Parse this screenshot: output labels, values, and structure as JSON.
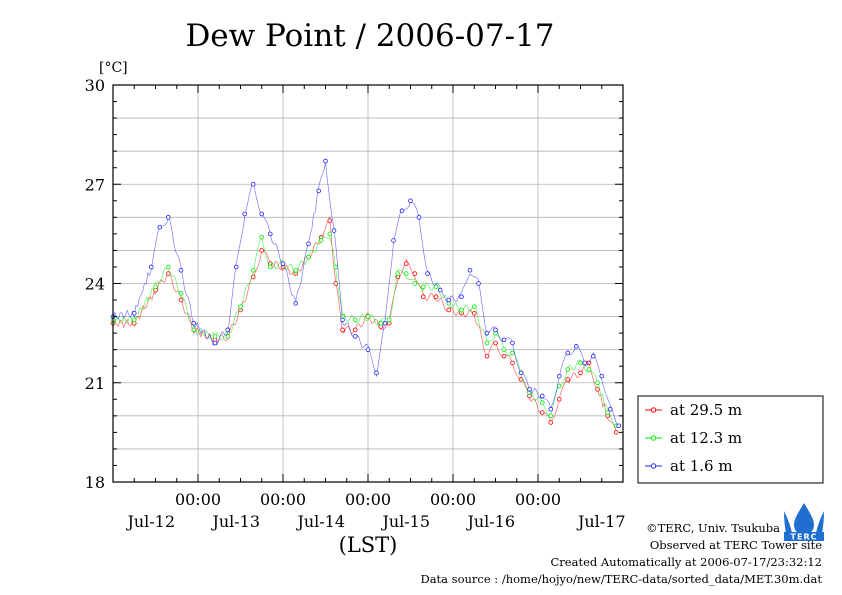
{
  "chart_data": {
    "type": "line",
    "title": "Dew Point / 2006-07-17",
    "unit_label": "[°C]",
    "xlabel": "(LST)",
    "ylim": [
      18,
      30
    ],
    "y_ticks": [
      18,
      21,
      24,
      27,
      30
    ],
    "xlim": [
      0,
      6
    ],
    "x_time_ticks": [
      {
        "at": 1,
        "time": "00:00",
        "date": "Jul-12"
      },
      {
        "at": 2,
        "time": "00:00",
        "date": "Jul-13"
      },
      {
        "at": 3,
        "time": "00:00",
        "date": "Jul-14"
      },
      {
        "at": 4,
        "time": "00:00",
        "date": "Jul-15"
      },
      {
        "at": 5,
        "time": "00:00",
        "date": "Jul-16"
      }
    ],
    "x_extra_date_label": {
      "at": 5.75,
      "date": "Jul-17"
    },
    "grid": true,
    "legend_position": "right",
    "series": [
      {
        "name": "at 29.5 m",
        "color": "#ff0000",
        "points": [
          [
            0,
            22.8
          ],
          [
            0.25,
            22.8
          ],
          [
            0.5,
            23.8
          ],
          [
            0.65,
            24.3
          ],
          [
            0.8,
            23.5
          ],
          [
            0.95,
            22.6
          ],
          [
            1.2,
            22.3
          ],
          [
            1.35,
            22.4
          ],
          [
            1.5,
            23.2
          ],
          [
            1.65,
            24.2
          ],
          [
            1.75,
            25.0
          ],
          [
            1.85,
            24.6
          ],
          [
            2.0,
            24.5
          ],
          [
            2.15,
            24.3
          ],
          [
            2.3,
            24.8
          ],
          [
            2.45,
            25.4
          ],
          [
            2.55,
            25.9
          ],
          [
            2.62,
            24.0
          ],
          [
            2.7,
            22.6
          ],
          [
            2.85,
            22.6
          ],
          [
            3.0,
            23.0
          ],
          [
            3.15,
            22.7
          ],
          [
            3.25,
            22.8
          ],
          [
            3.35,
            24.2
          ],
          [
            3.45,
            24.6
          ],
          [
            3.55,
            24.3
          ],
          [
            3.65,
            23.6
          ],
          [
            3.8,
            23.6
          ],
          [
            3.95,
            23.2
          ],
          [
            4.1,
            23.1
          ],
          [
            4.25,
            23.1
          ],
          [
            4.4,
            21.8
          ],
          [
            4.5,
            22.2
          ],
          [
            4.6,
            21.8
          ],
          [
            4.7,
            21.6
          ],
          [
            4.8,
            21.1
          ],
          [
            4.9,
            20.6
          ],
          [
            5.05,
            20.1
          ],
          [
            5.15,
            19.8
          ],
          [
            5.25,
            20.5
          ],
          [
            5.35,
            21.1
          ],
          [
            5.5,
            21.3
          ],
          [
            5.6,
            21.6
          ],
          [
            5.7,
            20.8
          ],
          [
            5.82,
            20.0
          ],
          [
            5.92,
            19.5
          ]
        ]
      },
      {
        "name": "at 12.3 m",
        "color": "#00ee00",
        "points": [
          [
            0,
            22.9
          ],
          [
            0.25,
            22.9
          ],
          [
            0.5,
            23.9
          ],
          [
            0.65,
            24.5
          ],
          [
            0.8,
            23.7
          ],
          [
            0.95,
            22.6
          ],
          [
            1.2,
            22.4
          ],
          [
            1.35,
            22.4
          ],
          [
            1.5,
            23.3
          ],
          [
            1.65,
            24.4
          ],
          [
            1.75,
            25.4
          ],
          [
            1.85,
            24.5
          ],
          [
            2.0,
            24.6
          ],
          [
            2.15,
            24.4
          ],
          [
            2.3,
            24.8
          ],
          [
            2.45,
            25.3
          ],
          [
            2.55,
            25.5
          ],
          [
            2.62,
            24.5
          ],
          [
            2.7,
            23.0
          ],
          [
            2.85,
            22.9
          ],
          [
            3.0,
            23.0
          ],
          [
            3.15,
            22.8
          ],
          [
            3.25,
            22.9
          ],
          [
            3.35,
            24.3
          ],
          [
            3.45,
            24.3
          ],
          [
            3.55,
            24.0
          ],
          [
            3.65,
            23.9
          ],
          [
            3.8,
            23.9
          ],
          [
            3.95,
            23.4
          ],
          [
            4.1,
            23.2
          ],
          [
            4.25,
            23.3
          ],
          [
            4.4,
            22.2
          ],
          [
            4.5,
            22.5
          ],
          [
            4.6,
            22.0
          ],
          [
            4.7,
            21.9
          ],
          [
            4.8,
            21.3
          ],
          [
            4.9,
            20.7
          ],
          [
            5.05,
            20.4
          ],
          [
            5.15,
            20.0
          ],
          [
            5.25,
            20.9
          ],
          [
            5.35,
            21.4
          ],
          [
            5.5,
            21.6
          ],
          [
            5.6,
            21.4
          ],
          [
            5.7,
            21.0
          ],
          [
            5.82,
            20.1
          ],
          [
            5.92,
            19.7
          ]
        ]
      },
      {
        "name": "at 1.6 m",
        "color": "#2222ff",
        "points": [
          [
            0,
            23.0
          ],
          [
            0.25,
            23.1
          ],
          [
            0.45,
            24.5
          ],
          [
            0.55,
            25.7
          ],
          [
            0.65,
            26.0
          ],
          [
            0.8,
            24.4
          ],
          [
            0.95,
            22.8
          ],
          [
            1.2,
            22.2
          ],
          [
            1.35,
            22.6
          ],
          [
            1.45,
            24.5
          ],
          [
            1.55,
            26.1
          ],
          [
            1.65,
            27.0
          ],
          [
            1.75,
            26.1
          ],
          [
            1.85,
            25.5
          ],
          [
            2.0,
            24.6
          ],
          [
            2.15,
            23.4
          ],
          [
            2.3,
            25.2
          ],
          [
            2.42,
            26.8
          ],
          [
            2.5,
            27.7
          ],
          [
            2.6,
            25.6
          ],
          [
            2.7,
            22.9
          ],
          [
            2.85,
            22.4
          ],
          [
            3.0,
            22.0
          ],
          [
            3.1,
            21.3
          ],
          [
            3.2,
            22.8
          ],
          [
            3.3,
            25.3
          ],
          [
            3.4,
            26.2
          ],
          [
            3.5,
            26.5
          ],
          [
            3.6,
            26.0
          ],
          [
            3.7,
            24.3
          ],
          [
            3.85,
            23.8
          ],
          [
            3.95,
            23.5
          ],
          [
            4.1,
            23.6
          ],
          [
            4.2,
            24.4
          ],
          [
            4.3,
            24.0
          ],
          [
            4.4,
            22.5
          ],
          [
            4.5,
            22.6
          ],
          [
            4.6,
            22.3
          ],
          [
            4.7,
            22.2
          ],
          [
            4.8,
            21.3
          ],
          [
            4.9,
            20.8
          ],
          [
            5.05,
            20.6
          ],
          [
            5.15,
            20.2
          ],
          [
            5.25,
            21.2
          ],
          [
            5.35,
            21.9
          ],
          [
            5.45,
            22.1
          ],
          [
            5.55,
            21.6
          ],
          [
            5.65,
            21.8
          ],
          [
            5.75,
            21.2
          ],
          [
            5.85,
            20.2
          ],
          [
            5.95,
            19.7
          ]
        ]
      }
    ]
  },
  "credits": {
    "copyright": "©TERC, Univ. Tsukuba",
    "observed": "Observed at TERC Tower site",
    "created": "Created Automatically at 2006-07-17/23:32:12",
    "source": "Data source : /home/hojyo/new/TERC-data/sorted_data/MET.30m.dat"
  },
  "logo": {
    "text": "TERC",
    "color": "#1e6fd0"
  }
}
